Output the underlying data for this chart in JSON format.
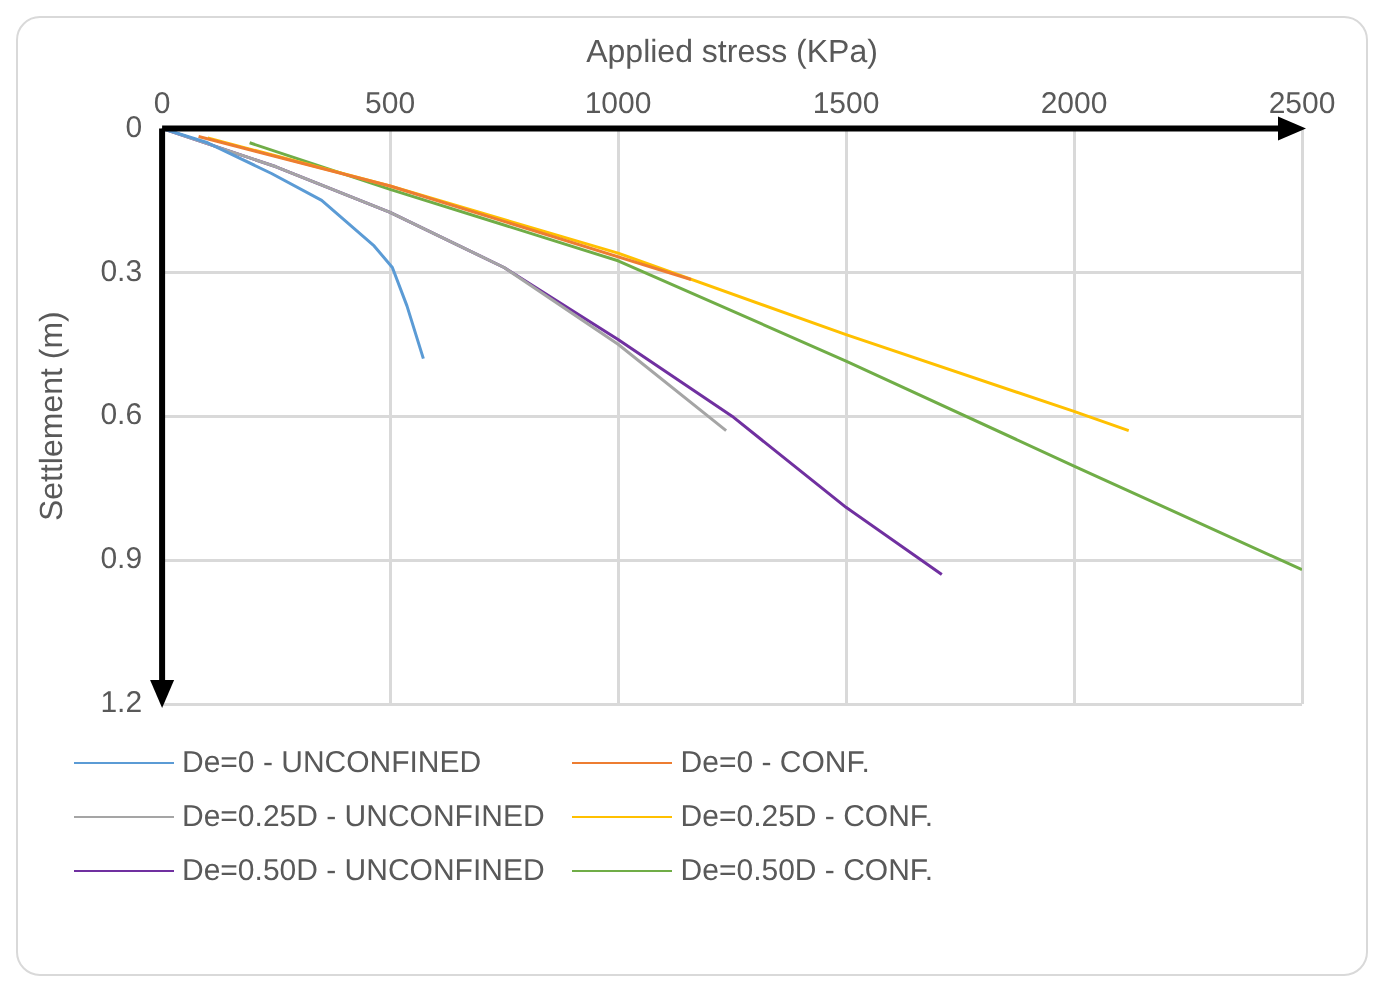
{
  "chart_data": {
    "type": "line",
    "xlabel": "Applied stress (KPa)",
    "ylabel": "Settlement (m)",
    "xlim": [
      0,
      2500
    ],
    "xticks": [
      0,
      500,
      1000,
      1500,
      2000,
      2500
    ],
    "ylim": [
      1.2,
      0
    ],
    "yticks": [
      0,
      0.3,
      0.6,
      0.9,
      1.2
    ],
    "grid": true,
    "legend": "bottom",
    "marker": "none",
    "line_style": "solid",
    "series": [
      {
        "name": "De=0 - UNCONFINED",
        "color": "#5b9bd5",
        "x": [
          0,
          100,
          240,
          350,
          465,
          505,
          537,
          573
        ],
        "values": [
          0,
          0.03,
          0.094,
          0.15,
          0.245,
          0.29,
          0.37,
          0.48
        ]
      },
      {
        "name": "De=0 - CONF.",
        "color": "#ed7d31",
        "x": [
          80,
          500,
          1160
        ],
        "values": [
          0.017,
          0.12,
          0.315
        ]
      },
      {
        "name": "De=0.25D - UNCONFINED",
        "color": "#a5a5a5",
        "x": [
          0,
          250,
          500,
          750,
          1000,
          1237
        ],
        "values": [
          0,
          0.08,
          0.175,
          0.29,
          0.45,
          0.63
        ]
      },
      {
        "name": "De=0.25D - CONF.",
        "color": "#ffc000",
        "x": [
          100,
          500,
          1000,
          1500,
          2000,
          2120
        ],
        "values": [
          0.02,
          0.12,
          0.26,
          0.43,
          0.59,
          0.63
        ]
      },
      {
        "name": "De=0.50D - UNCONFINED",
        "color": "#7030a0",
        "x": [
          0,
          250,
          500,
          750,
          1000,
          1250,
          1500,
          1710
        ],
        "values": [
          0,
          0.08,
          0.175,
          0.29,
          0.44,
          0.6,
          0.79,
          0.93
        ]
      },
      {
        "name": "De=0.50D - CONF.",
        "color": "#70ad47",
        "x": [
          192,
          500,
          1000,
          1500,
          2000,
          2500
        ],
        "values": [
          0.03,
          0.127,
          0.276,
          0.485,
          0.704,
          0.92
        ]
      }
    ]
  }
}
